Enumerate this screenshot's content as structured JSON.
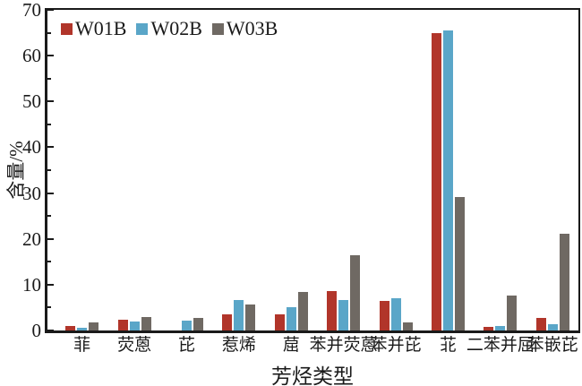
{
  "chart_data": {
    "type": "bar",
    "title": "",
    "xlabel": "芳烃类型",
    "ylabel": "含量/%",
    "categories": [
      "菲",
      "荧蒽",
      "芘",
      "惹烯",
      "䓛",
      "苯并荧蒽",
      "苯并芘",
      "苝",
      "二苯并屈",
      "苯嵌芘"
    ],
    "series": [
      {
        "name": "W01B",
        "color": "#b1352a",
        "values": [
          0.9,
          2.3,
          0,
          3.5,
          3.6,
          8.6,
          6.5,
          64.9,
          0.8,
          2.7
        ]
      },
      {
        "name": "W02B",
        "color": "#5aa6c8",
        "values": [
          0.6,
          1.9,
          2.1,
          6.6,
          5.1,
          6.7,
          7.1,
          65.5,
          1.0,
          1.4
        ]
      },
      {
        "name": "W03B",
        "color": "#6f6963",
        "values": [
          1.8,
          2.9,
          2.8,
          5.6,
          8.5,
          16.5,
          1.7,
          29.1,
          7.7,
          21.2
        ]
      }
    ],
    "ylim": [
      0,
      70
    ],
    "ytick_step": 10,
    "ytick_minor_step": 5,
    "grid": false,
    "legend_position": "top-left-inside",
    "axis_color": "#1a1a1a",
    "background_color": "#ffffff"
  }
}
